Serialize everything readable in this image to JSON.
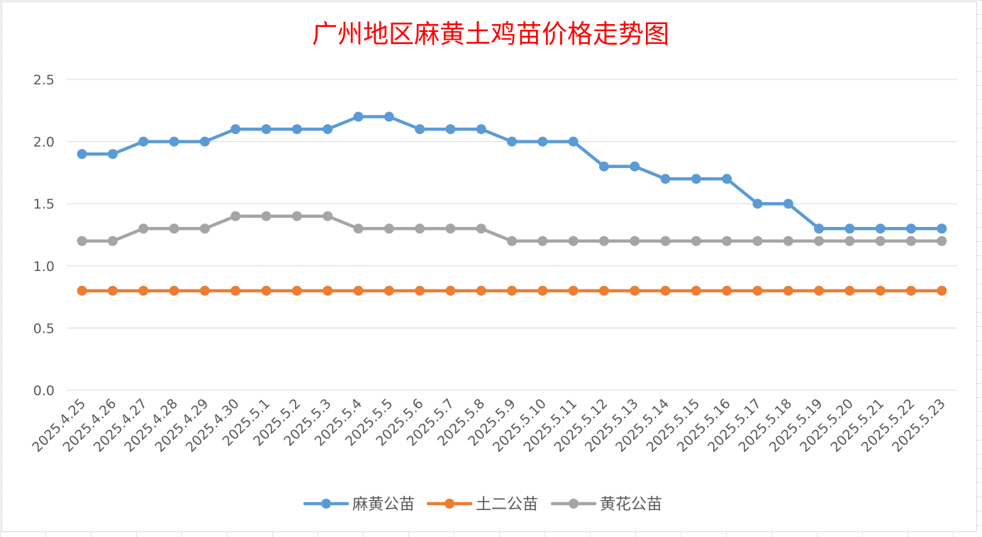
{
  "chart_data": {
    "type": "line",
    "title": "广州地区麻黄土鸡苗价格走势图",
    "xlabel": "",
    "ylabel": "",
    "ylim": [
      0,
      2.5
    ],
    "yticks": [
      "0.0",
      "0.5",
      "1.0",
      "1.5",
      "2.0",
      "2.5"
    ],
    "grid": true,
    "legend_position": "bottom",
    "x": [
      "2025.4.25",
      "2025.4.26",
      "2025.4.27",
      "2025.4.28",
      "2025.4.29",
      "2025.4.30",
      "2025.5.1",
      "2025.5.2",
      "2025.5.3",
      "2025.5.4",
      "2025.5.5",
      "2025.5.6",
      "2025.5.7",
      "2025.5.8",
      "2025.5.9",
      "2025.5.10",
      "2025.5.11",
      "2025.5.12",
      "2025.5.13",
      "2025.5.14",
      "2025.5.15",
      "2025.5.16",
      "2025.5.17",
      "2025.5.18",
      "2025.5.19",
      "2025.5.20",
      "2025.5.21",
      "2025.5.22",
      "2025.5.23"
    ],
    "series": [
      {
        "name": "麻黄公苗",
        "color": "#5b9bd5",
        "values": [
          1.9,
          1.9,
          2.0,
          2.0,
          2.0,
          2.1,
          2.1,
          2.1,
          2.1,
          2.2,
          2.2,
          2.1,
          2.1,
          2.1,
          2.0,
          2.0,
          2.0,
          1.8,
          1.8,
          1.7,
          1.7,
          1.7,
          1.5,
          1.5,
          1.3,
          1.3,
          1.3,
          1.3,
          1.3
        ]
      },
      {
        "name": "土二公苗",
        "color": "#ed7d31",
        "values": [
          0.8,
          0.8,
          0.8,
          0.8,
          0.8,
          0.8,
          0.8,
          0.8,
          0.8,
          0.8,
          0.8,
          0.8,
          0.8,
          0.8,
          0.8,
          0.8,
          0.8,
          0.8,
          0.8,
          0.8,
          0.8,
          0.8,
          0.8,
          0.8,
          0.8,
          0.8,
          0.8,
          0.8,
          0.8
        ]
      },
      {
        "name": "黄花公苗",
        "color": "#a5a5a5",
        "values": [
          1.2,
          1.2,
          1.3,
          1.3,
          1.3,
          1.4,
          1.4,
          1.4,
          1.4,
          1.3,
          1.3,
          1.3,
          1.3,
          1.3,
          1.2,
          1.2,
          1.2,
          1.2,
          1.2,
          1.2,
          1.2,
          1.2,
          1.2,
          1.2,
          1.2,
          1.2,
          1.2,
          1.2,
          1.2
        ]
      }
    ]
  }
}
